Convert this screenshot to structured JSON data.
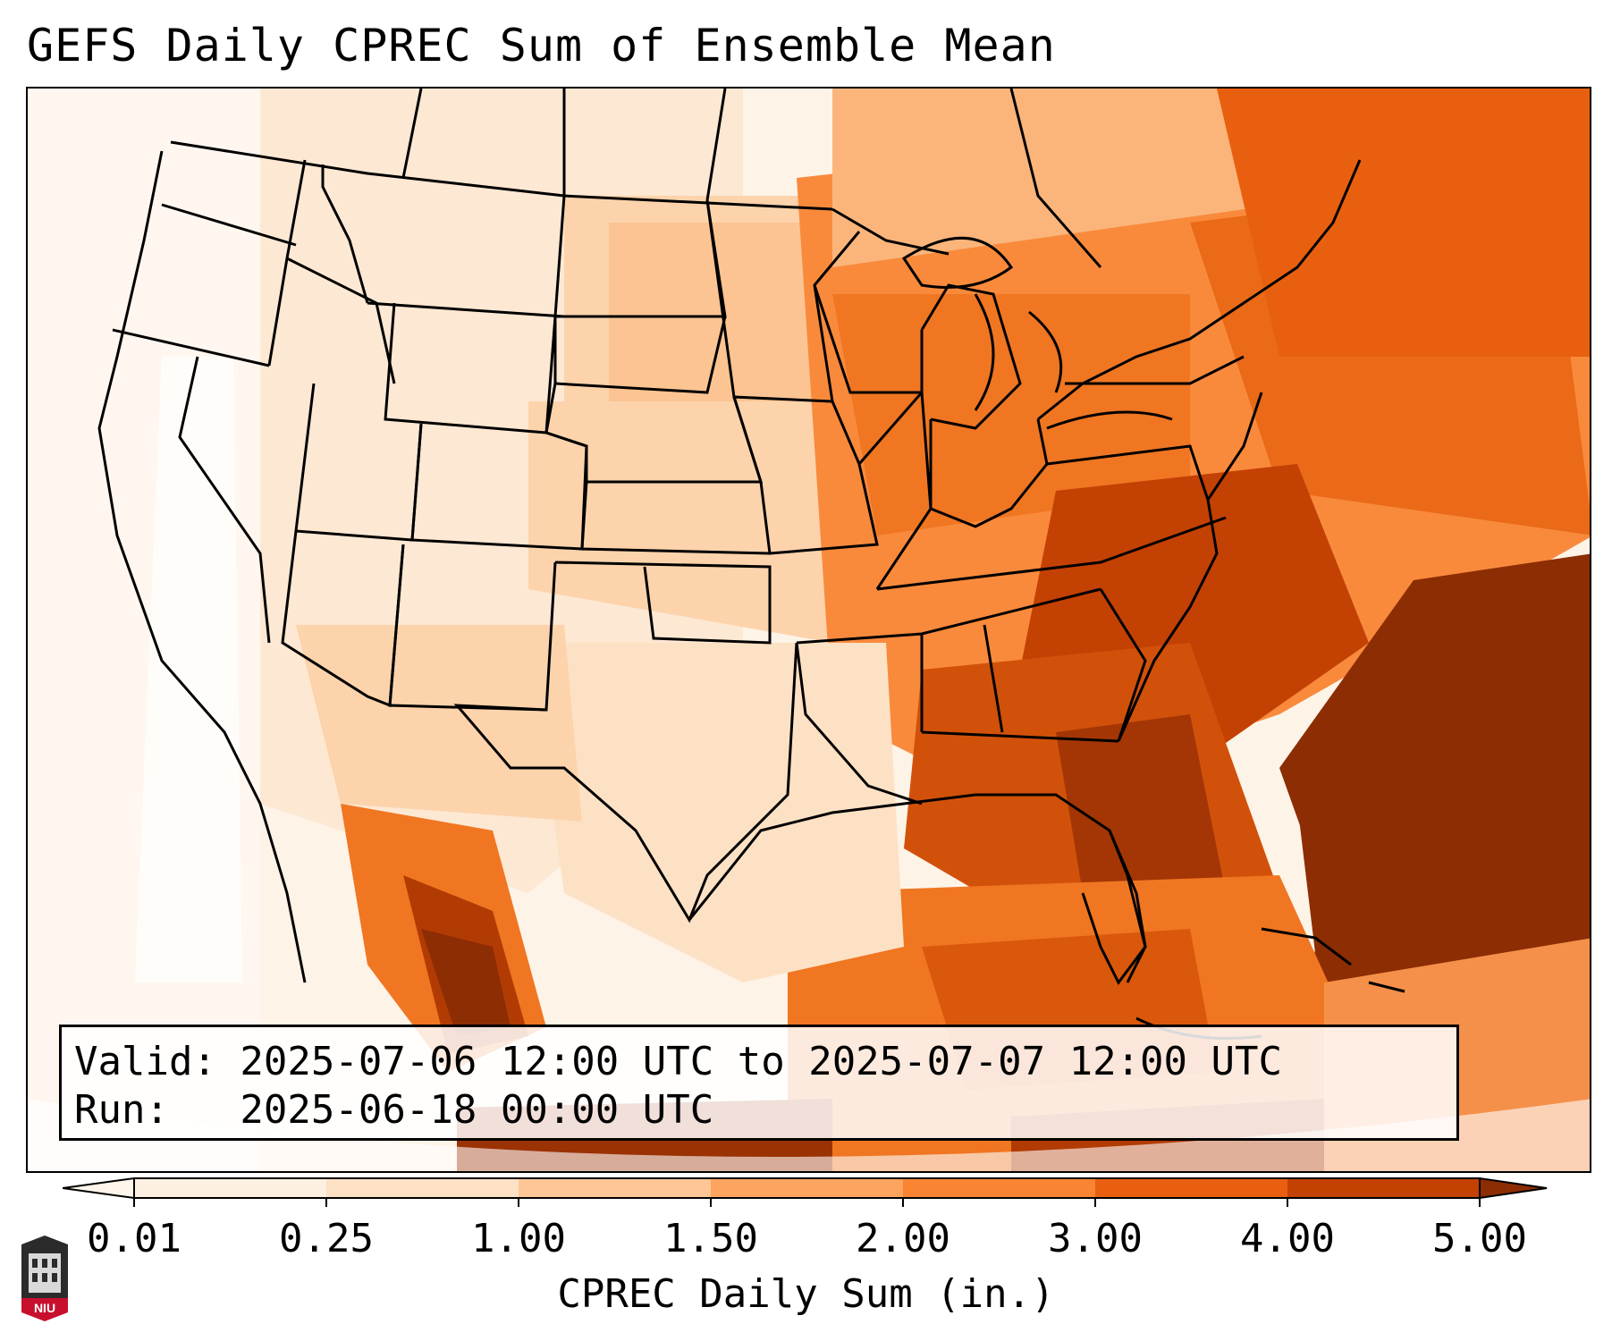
{
  "title": "GEFS Daily CPREC Sum of Ensemble Mean",
  "info": {
    "valid": "Valid: 2025-07-06 12:00 UTC to 2025-07-07 12:00 UTC",
    "run": "Run:   2025-06-18 00:00 UTC"
  },
  "colorbar": {
    "label": "CPREC Daily Sum (in.)",
    "levels": [
      {
        "label": "0.01",
        "color": "#fef0e1"
      },
      {
        "label": "0.25",
        "color": "#fde1c4"
      },
      {
        "label": "1.00",
        "color": "#fdc697"
      },
      {
        "label": "1.50",
        "color": "#fda45f"
      },
      {
        "label": "2.00",
        "color": "#f98432"
      },
      {
        "label": "3.00",
        "color": "#e8600f"
      },
      {
        "label": "4.00",
        "color": "#c44104"
      },
      {
        "label": "5.00",
        "color": "#8c2d04"
      }
    ],
    "under_color": "#fff5eb",
    "over_color": "#8c2d04"
  },
  "logo_text": "NIU"
}
